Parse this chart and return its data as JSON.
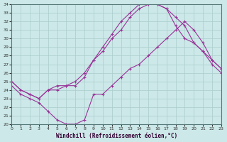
{
  "title": "",
  "xlabel": "Windchill (Refroidissement éolien,°C)",
  "ylabel": "",
  "xlim": [
    0,
    23
  ],
  "ylim": [
    20,
    34
  ],
  "yticks": [
    20,
    21,
    22,
    23,
    24,
    25,
    26,
    27,
    28,
    29,
    30,
    31,
    32,
    33,
    34
  ],
  "xticks": [
    0,
    1,
    2,
    3,
    4,
    5,
    6,
    7,
    8,
    9,
    10,
    11,
    12,
    13,
    14,
    15,
    16,
    17,
    18,
    19,
    20,
    21,
    22,
    23
  ],
  "background_color": "#cce8e8",
  "line_color": "#993399",
  "grid_color": "#aacccc",
  "line1_x": [
    0,
    1,
    2,
    3,
    4,
    5,
    6,
    7,
    8,
    9,
    10,
    11,
    12,
    13,
    14,
    15,
    16,
    17,
    18,
    19,
    20,
    21,
    22,
    23
  ],
  "line1_y": [
    25.0,
    24.0,
    23.5,
    23.0,
    24.0,
    24.0,
    24.5,
    24.5,
    25.5,
    27.5,
    28.5,
    30.0,
    31.0,
    32.5,
    33.5,
    34.0,
    34.0,
    33.5,
    31.5,
    30.0,
    29.5,
    28.5,
    27.5,
    26.5
  ],
  "line2_x": [
    0,
    1,
    2,
    3,
    4,
    5,
    6,
    7,
    8,
    9,
    10,
    11,
    12,
    13,
    14,
    15,
    16,
    17,
    18,
    19,
    20,
    21,
    22,
    23
  ],
  "line2_y": [
    25.0,
    24.0,
    23.5,
    23.0,
    24.0,
    24.5,
    24.5,
    25.0,
    26.0,
    27.5,
    29.0,
    30.5,
    32.0,
    33.0,
    34.0,
    34.0,
    34.0,
    33.5,
    32.5,
    31.5,
    29.5,
    28.5,
    27.0,
    26.0
  ],
  "line3_x": [
    0,
    1,
    2,
    3,
    4,
    5,
    6,
    7,
    8,
    9,
    10,
    11,
    12,
    13,
    14,
    15,
    16,
    17,
    18,
    19,
    20,
    21,
    22,
    23
  ],
  "line3_y": [
    24.5,
    23.5,
    23.0,
    22.5,
    21.5,
    20.5,
    20.0,
    20.0,
    20.5,
    23.5,
    23.5,
    24.5,
    25.5,
    26.5,
    27.0,
    28.0,
    29.0,
    30.0,
    31.0,
    32.0,
    31.0,
    29.5,
    27.5,
    26.5
  ]
}
